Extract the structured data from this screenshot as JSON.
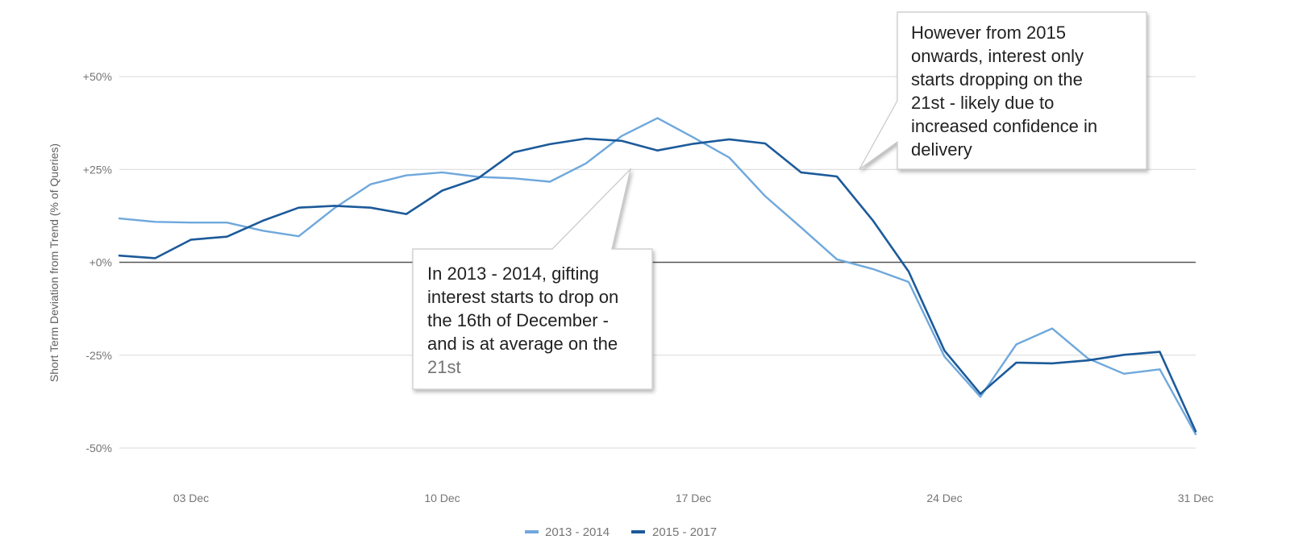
{
  "chart_data": {
    "type": "line",
    "ylabel": "Short Term Deviation from Trend (% of Queries)",
    "xlabel": "",
    "y_ticks": [
      "+50%",
      "+25%",
      "+0%",
      "-25%",
      "-50%"
    ],
    "ylim": [
      -50,
      50
    ],
    "x_ticks": [
      "03 Dec",
      "10 Dec",
      "17 Dec",
      "24 Dec",
      "31 Dec"
    ],
    "x": [
      1,
      2,
      3,
      4,
      5,
      6,
      7,
      8,
      9,
      10,
      11,
      12,
      13,
      14,
      15,
      16,
      17,
      18,
      19,
      20,
      21,
      22,
      23,
      24,
      25,
      26,
      27,
      28,
      29,
      30,
      31
    ],
    "grid": true,
    "legend_position": "bottom",
    "series": [
      {
        "name": "2013 - 2014",
        "color": "#6fa8dc",
        "values": [
          11.8,
          10.9,
          10.7,
          10.7,
          8.5,
          7,
          14.6,
          21,
          23.4,
          24.2,
          23,
          22.6,
          21.7,
          26.6,
          34,
          38.8,
          33.6,
          28.2,
          17.8,
          9.4,
          0.8,
          -1.8,
          -5.3,
          -25.4,
          -36.2,
          -22.1,
          -17.8,
          -25.9,
          -30,
          -28.8,
          -46.3
        ]
      },
      {
        "name": "2015 - 2017",
        "color": "#1c5a9a",
        "values": [
          1.8,
          1.1,
          6.1,
          6.9,
          11.2,
          14.7,
          15.2,
          14.7,
          13,
          19.3,
          22.6,
          29.6,
          31.8,
          33.3,
          32.7,
          30.1,
          31.9,
          33.1,
          32,
          24.2,
          23.1,
          11.3,
          -2.5,
          -23.8,
          -35.4,
          -27,
          -27.2,
          -26.4,
          -24.9,
          -24.1,
          -45.5
        ]
      }
    ],
    "annotations": [
      {
        "lines": [
          "In 2013 - 2014, gifting",
          "interest starts to drop on",
          "the 16th of December -",
          "and is at average on the",
          "21st"
        ]
      },
      {
        "lines": [
          "However from 2015",
          "onwards, interest only",
          "starts dropping on the",
          "21st - likely due to",
          "increased confidence in",
          "delivery"
        ]
      }
    ]
  }
}
